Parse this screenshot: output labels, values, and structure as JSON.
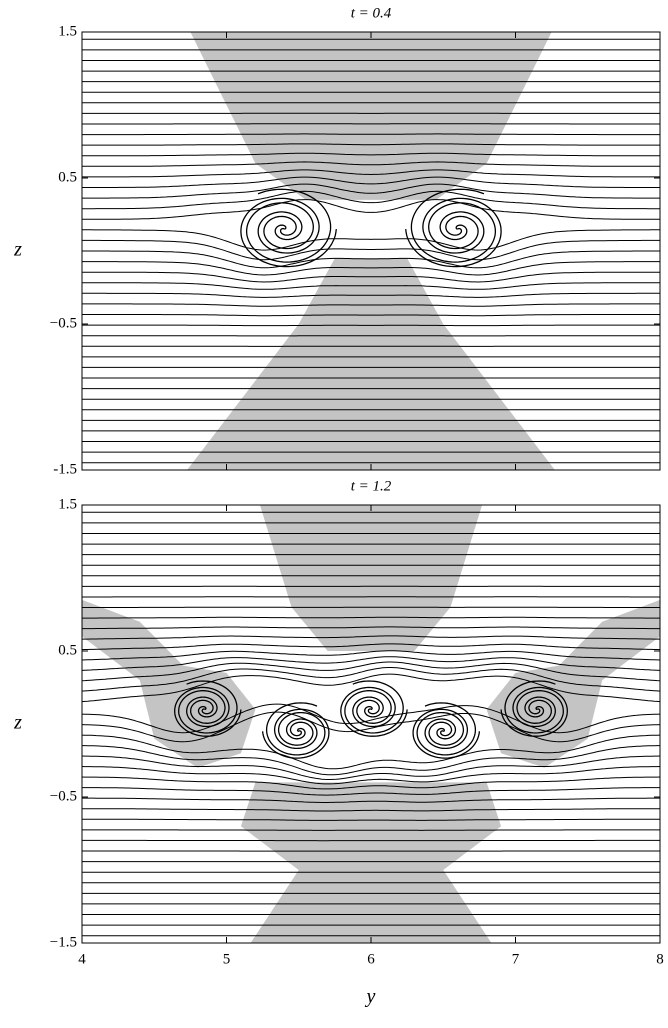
{
  "chart_data": [
    {
      "type": "contour",
      "title": "t = 0.4",
      "ylabel": "z",
      "xlim": [
        4,
        8
      ],
      "xticks": [
        4,
        5,
        6,
        7,
        8
      ],
      "ylim": [
        -1.5,
        1.5
      ],
      "yticks": [
        -1.5,
        {
          "value": -0.5,
          "label": "−0.5"
        },
        0.5,
        1.5
      ]
    },
    {
      "type": "contour",
      "title": "t = 1.2",
      "ylabel": "z",
      "xlabel": "y",
      "xlim": [
        4,
        8
      ],
      "xticks": [
        4,
        5,
        6,
        7,
        8
      ],
      "ylim": [
        -1.5,
        1.5
      ],
      "yticks": [
        {
          "value": -1.5,
          "label": "−1.5"
        },
        {
          "value": -0.5,
          "label": "−0.5"
        },
        0.5,
        1.5
      ]
    }
  ]
}
